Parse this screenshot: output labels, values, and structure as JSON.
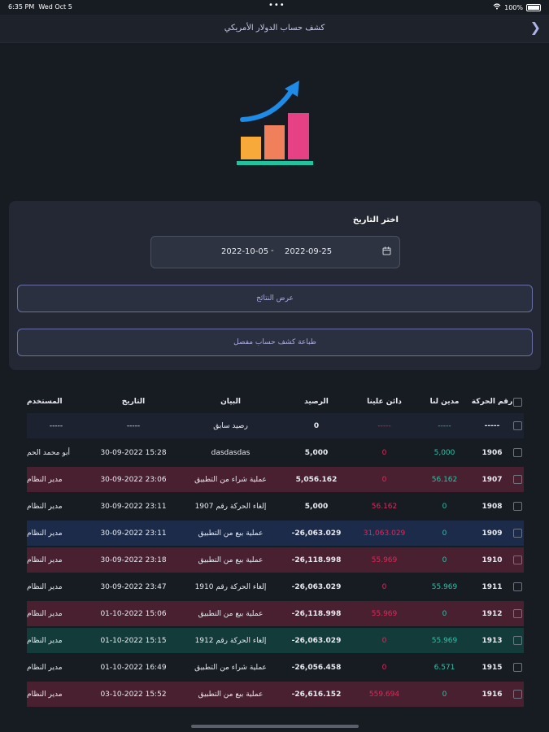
{
  "status": {
    "time": "6:35 PM",
    "date": "Wed Oct 5",
    "dots": "•••",
    "battery": "100%"
  },
  "nav": {
    "title": "كشف حساب الدولار الأمريكي",
    "back_icon": "chevron-right-icon"
  },
  "filter": {
    "label": "اختر التاريخ",
    "date_from": "2022-09-25",
    "separator": "-",
    "date_to": "2022-10-05",
    "calendar_icon": "calendar-icon"
  },
  "buttons": {
    "show": "عرض النتائج",
    "print": "طباعة كشف حساب مفصل"
  },
  "colors": {
    "positive": "#2fc1a6",
    "negative": "#e3285b",
    "accent": "#6a6fa6"
  },
  "table": {
    "headers": {
      "id": "رقم الحركة",
      "debit": "مدين لنا",
      "credit": "دائن علينا",
      "balance": "الرصيد",
      "desc": "البيان",
      "date": "التاريخ",
      "user": "المستخدم"
    },
    "rows": [
      {
        "id": "-----",
        "debit": "-----",
        "credit": "-----",
        "balance": "0",
        "desc": "رصيد سابق",
        "date": "-----",
        "user": "-----"
      },
      {
        "id": "1906",
        "debit": "5,000",
        "credit": "0",
        "balance": "5,000",
        "desc": "dasdasdas",
        "date": "30-09-2022 15:28",
        "user": "أبو محمد الحم"
      },
      {
        "id": "1907",
        "debit": "56.162",
        "credit": "0",
        "balance": "5,056.162",
        "desc": "عملية شراء من التطبيق",
        "date": "30-09-2022 23:06",
        "user": "مدير النظام"
      },
      {
        "id": "1908",
        "debit": "0",
        "credit": "56.162",
        "balance": "5,000",
        "desc": "إلغاء الحركة رقم 1907",
        "date": "30-09-2022 23:11",
        "user": "مدير النظام"
      },
      {
        "id": "1909",
        "debit": "0",
        "credit": "31,063.029",
        "balance": "-26,063.029",
        "desc": "عملية بيع من التطبيق",
        "date": "30-09-2022 23:11",
        "user": "مدير النظام"
      },
      {
        "id": "1910",
        "debit": "0",
        "credit": "55.969",
        "balance": "-26,118.998",
        "desc": "عملية بيع من التطبيق",
        "date": "30-09-2022 23:18",
        "user": "مدير النظام"
      },
      {
        "id": "1911",
        "debit": "55.969",
        "credit": "0",
        "balance": "-26,063.029",
        "desc": "إلغاء الحركة رقم 1910",
        "date": "30-09-2022 23:47",
        "user": "مدير النظام"
      },
      {
        "id": "1912",
        "debit": "0",
        "credit": "55.969",
        "balance": "-26,118.998",
        "desc": "عملية بيع من التطبيق",
        "date": "01-10-2022 15:06",
        "user": "مدير النظام"
      },
      {
        "id": "1913",
        "debit": "55.969",
        "credit": "0",
        "balance": "-26,063.029",
        "desc": "إلغاء الحركة رقم 1912",
        "date": "01-10-2022 15:15",
        "user": "مدير النظام"
      },
      {
        "id": "1915",
        "debit": "6.571",
        "credit": "0",
        "balance": "-26,056.458",
        "desc": "عملية شراء من التطبيق",
        "date": "01-10-2022 16:49",
        "user": "مدير النظام"
      },
      {
        "id": "1916",
        "debit": "0",
        "credit": "559.694",
        "balance": "-26,616.152",
        "desc": "عملية بيع من التطبيق",
        "date": "03-10-2022 15:52",
        "user": "مدير النظام"
      }
    ]
  }
}
